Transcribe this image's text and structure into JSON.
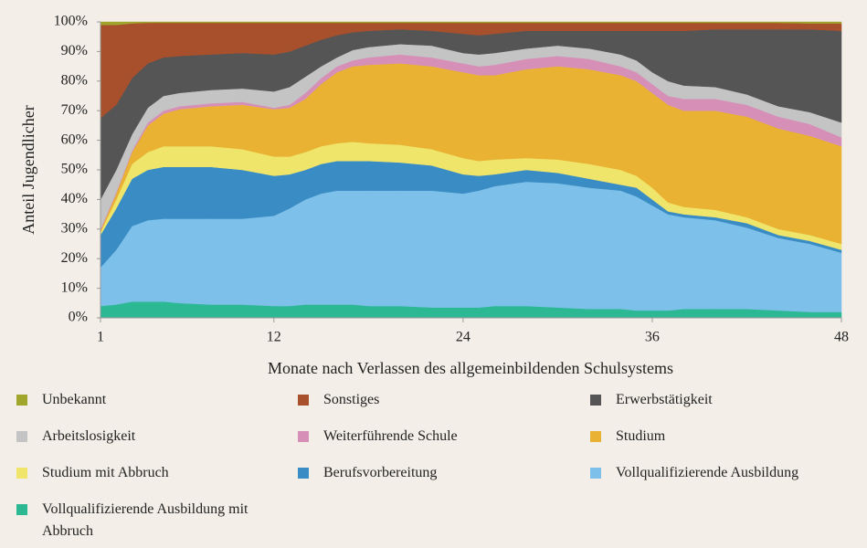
{
  "chart_data": {
    "type": "area",
    "stacked": true,
    "xlabel": "Monate nach Verlassen des allgemeinbildenden Schulsystems",
    "ylabel": "Anteil Jugendlicher",
    "x": [
      1,
      2,
      3,
      4,
      5,
      6,
      8,
      10,
      12,
      13,
      14,
      15,
      16,
      17,
      18,
      20,
      22,
      24,
      25,
      26,
      28,
      30,
      32,
      34,
      35,
      36,
      37,
      38,
      40,
      42,
      44,
      46,
      48
    ],
    "xlim": [
      1,
      48
    ],
    "xticks": [
      1,
      12,
      24,
      36,
      48
    ],
    "ylim": [
      0,
      100
    ],
    "yticks": [
      {
        "value": 0,
        "label": "0%"
      },
      {
        "value": 10,
        "label": "10%"
      },
      {
        "value": 20,
        "label": "20%"
      },
      {
        "value": 30,
        "label": "30%"
      },
      {
        "value": 40,
        "label": "40%"
      },
      {
        "value": 50,
        "label": "50%"
      },
      {
        "value": 60,
        "label": "60%"
      },
      {
        "value": 70,
        "label": "70%"
      },
      {
        "value": 80,
        "label": "80%"
      },
      {
        "value": 90,
        "label": "90%"
      },
      {
        "value": 100,
        "label": "100%"
      }
    ],
    "grid": false,
    "series": [
      {
        "name": "Unbekannt",
        "color": "#a0a52c",
        "values": [
          1,
          1,
          0.5,
          0.3,
          0.3,
          0.3,
          0.3,
          0.3,
          0.3,
          0.3,
          0.3,
          0.3,
          0.3,
          0.3,
          0.3,
          0.3,
          0.3,
          0.3,
          0.3,
          0.3,
          0.3,
          0.3,
          0.3,
          0.3,
          0.3,
          0.3,
          0.3,
          0.3,
          0.3,
          0.3,
          0.3,
          0.5,
          0.5
        ]
      },
      {
        "name": "Sonstiges",
        "color": "#a84f2c",
        "values": [
          31.5,
          27,
          18.5,
          13.7,
          11.7,
          11.2,
          10.7,
          10.2,
          10.7,
          9.7,
          7.7,
          5.7,
          4.2,
          3.2,
          2.7,
          2.2,
          2.7,
          3.7,
          4.2,
          3.7,
          2.7,
          2.7,
          2.7,
          2.7,
          2.7,
          2.7,
          2.7,
          2.7,
          2.2,
          2.2,
          2.2,
          2,
          2.5
        ]
      },
      {
        "name": "Erwerbstätigkeit",
        "color": "#555555",
        "values": [
          27.5,
          22,
          19,
          15,
          13,
          12.5,
          12,
          12,
          12.5,
          12,
          10.5,
          9,
          7.5,
          6,
          5.5,
          5,
          5,
          6.5,
          6.5,
          6.5,
          6,
          5,
          6,
          8,
          10,
          14,
          17,
          18.5,
          19.5,
          22,
          26,
          28,
          31
        ]
      },
      {
        "name": "Arbeitslosigkeit",
        "color": "#c4c4c4",
        "values": [
          10,
          7.5,
          5.5,
          5,
          5,
          4.5,
          4.5,
          4.5,
          5.5,
          6,
          5.5,
          4,
          3,
          3.5,
          3.5,
          3.5,
          4,
          3.5,
          4,
          4,
          3.5,
          3.5,
          3.5,
          4,
          4,
          4,
          5,
          4.5,
          4,
          3.5,
          3.5,
          4,
          5
        ]
      },
      {
        "name": "Weiterführende Schule",
        "color": "#d690b8",
        "values": [
          0.5,
          0.5,
          0.5,
          1,
          1,
          1,
          1,
          1,
          0.5,
          1,
          2,
          2,
          2,
          2,
          2.5,
          3,
          3,
          3,
          3,
          3.5,
          3.5,
          3.5,
          3.5,
          3,
          3,
          3,
          3,
          4,
          4,
          4,
          4,
          4,
          3
        ]
      },
      {
        "name": "Studium",
        "color": "#e9b232",
        "values": [
          0.5,
          2,
          4,
          9,
          11,
          12.5,
          13.5,
          15,
          16,
          16.5,
          18,
          21,
          24,
          25.5,
          26.5,
          27.5,
          28,
          29,
          29,
          28.5,
          30,
          31.5,
          32,
          32,
          32,
          32,
          33,
          32.5,
          33.5,
          34,
          34,
          33.5,
          33
        ]
      },
      {
        "name": "Studium mit Abbruch",
        "color": "#efe56b",
        "values": [
          1,
          3,
          5,
          6,
          7,
          7,
          7,
          7,
          6.5,
          6,
          6,
          6,
          6,
          6.5,
          6,
          6,
          5.5,
          5.5,
          5,
          5,
          4,
          4.5,
          5,
          5,
          4,
          4,
          3,
          2.5,
          2.5,
          2,
          2,
          2,
          2
        ]
      },
      {
        "name": "Berufsvorbereitung",
        "color": "#3a8cc4",
        "values": [
          11,
          14,
          16,
          17,
          17.5,
          17.5,
          17.5,
          16.5,
          13.5,
          11.5,
          10,
          10,
          10,
          10,
          10,
          9.5,
          8.5,
          6.5,
          5,
          4,
          4,
          3.5,
          3,
          2,
          3,
          2,
          1,
          1,
          1,
          1.5,
          1,
          1,
          1
        ]
      },
      {
        "name": "Vollqualifizierende Ausbildung",
        "color": "#7dc0ea",
        "values": [
          13,
          18.5,
          25.5,
          27.5,
          28,
          28.5,
          29,
          29,
          30.5,
          33,
          35.5,
          37.5,
          38.5,
          38.5,
          39,
          39,
          39.5,
          38.5,
          39.5,
          40.5,
          42,
          42,
          41,
          40,
          38.5,
          35.5,
          32.5,
          31,
          30,
          27.5,
          24.5,
          23,
          20
        ]
      },
      {
        "name": "Vollqualifizierende Ausbildung mit Abbruch",
        "color": "#2db894",
        "values": [
          4,
          4.5,
          5.5,
          5.5,
          5.5,
          5,
          4.5,
          4.5,
          4,
          4,
          4.5,
          4.5,
          4.5,
          4.5,
          4,
          4,
          3.5,
          3.5,
          3.5,
          4,
          4,
          3.5,
          3,
          3,
          2.5,
          2.5,
          2.5,
          3,
          3,
          3,
          2.5,
          2,
          2
        ]
      }
    ]
  }
}
